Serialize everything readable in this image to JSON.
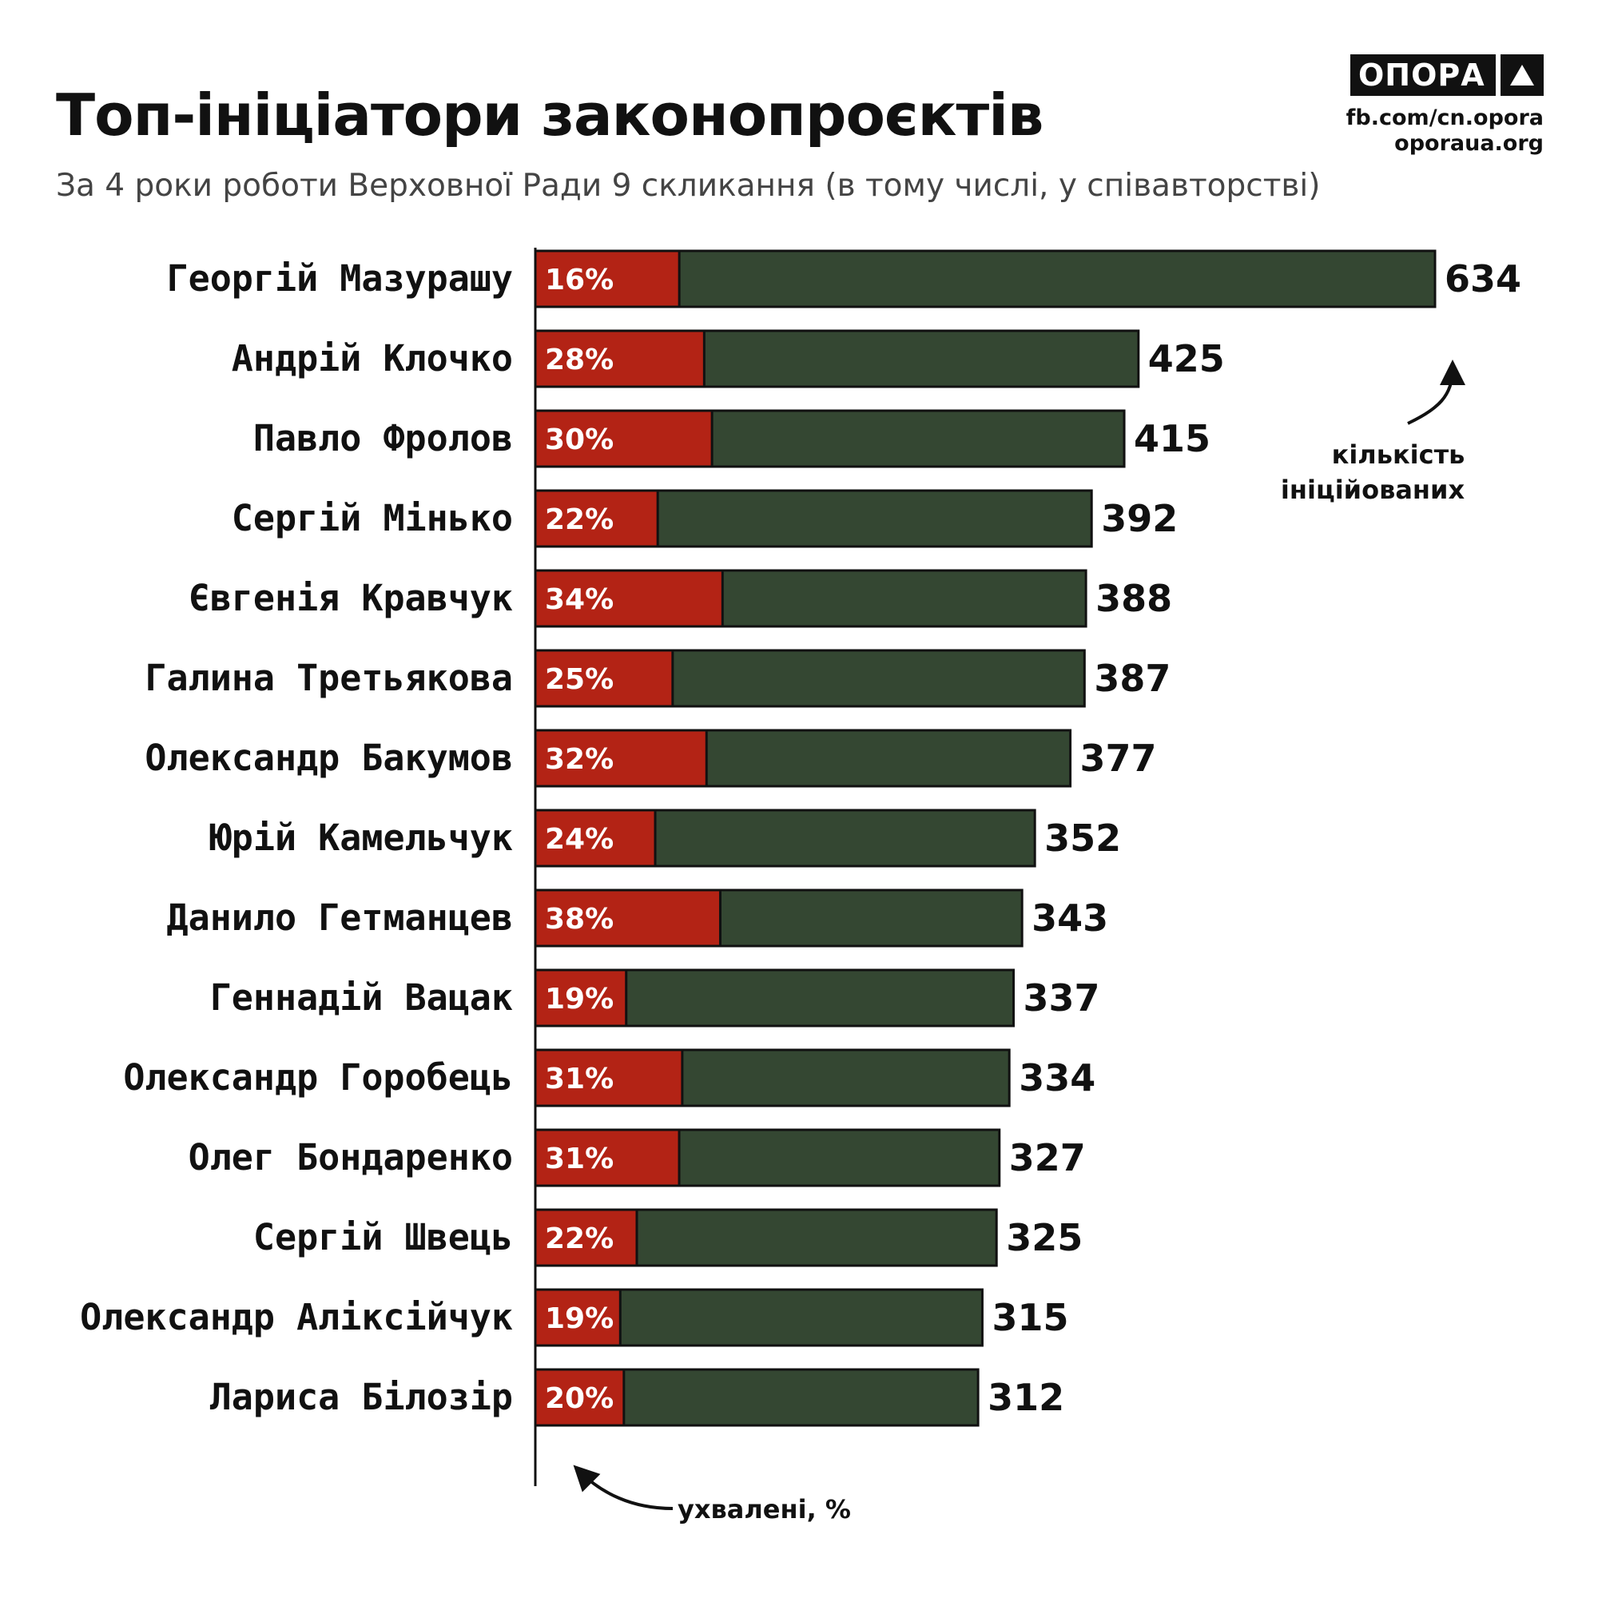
{
  "header": {
    "title": "Топ-ініціатори законопроєктів",
    "subtitle": "За 4 роки роботи Верховної Ради 9 скликання (в тому числі, у співавторстві)"
  },
  "brand": {
    "logo_text": "ОПОРА",
    "logo_icon": "triangle-icon",
    "link_facebook": "fb.com/cn.opora",
    "link_site": "oporaua.org"
  },
  "colors": {
    "total_bar": "#344732",
    "approved_bar": "#b32315",
    "outline": "#111111"
  },
  "chart_data": {
    "type": "bar",
    "orientation": "horizontal",
    "stacked_overlay": true,
    "categories": [
      "Георгій Мазурашу",
      "Андрій Клочко",
      "Павло Фролов",
      "Сергій Мінько",
      "Євгенія Кравчук",
      "Галина Третьякова",
      "Олександр Бакумов",
      "Юрій Камельчук",
      "Данило Гетманцев",
      "Геннадій Вацак",
      "Олександр Горобець",
      "Олег Бондаренко",
      "Сергій Швець",
      "Олександр Аліксійчук",
      "Лариса Білозір"
    ],
    "series": [
      {
        "name": "кількість ініційованих",
        "values": [
          634,
          425,
          415,
          392,
          388,
          387,
          377,
          352,
          343,
          337,
          334,
          327,
          325,
          315,
          312
        ]
      },
      {
        "name": "ухвалені, %",
        "values": [
          16,
          28,
          30,
          22,
          34,
          25,
          32,
          24,
          38,
          19,
          31,
          31,
          22,
          19,
          20
        ]
      }
    ],
    "value_labels": [
      "634",
      "425",
      "415",
      "392",
      "388",
      "387",
      "377",
      "352",
      "343",
      "337",
      "334",
      "327",
      "325",
      "315",
      "312"
    ],
    "percent_labels": [
      "16%",
      "28%",
      "30%",
      "22%",
      "34%",
      "25%",
      "32%",
      "24%",
      "38%",
      "19%",
      "31%",
      "31%",
      "22%",
      "19%",
      "20%"
    ],
    "annotations": {
      "total_line1": "кількість",
      "total_line2": "ініційованих",
      "approved": "ухвалені, %"
    },
    "xlim": [
      0,
      634
    ],
    "grid": false,
    "legend": "none"
  }
}
